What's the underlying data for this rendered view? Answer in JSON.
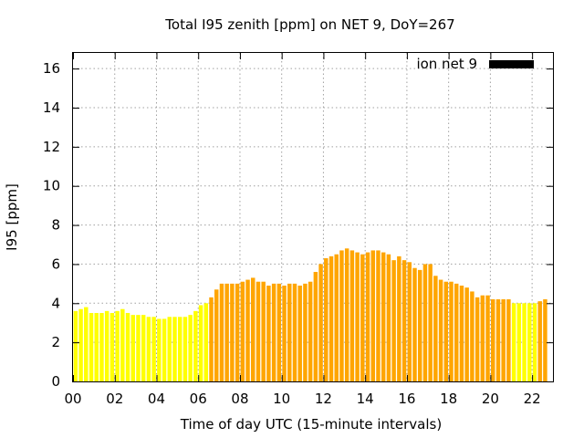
{
  "chart_data": {
    "type": "bar",
    "title": "Total I95 zenith [ppm] on NET 9, DoY=267",
    "xlabel": "Time of day UTC (15-minute intervals)",
    "ylabel": "I95 [ppm]",
    "xlim": [
      0,
      23
    ],
    "ylim": [
      0,
      16.8
    ],
    "grid": true,
    "legend": {
      "position": "top-right",
      "label": "ion net 9",
      "color": "#000000"
    },
    "x_ticks": [
      {
        "value": 0,
        "label": "00"
      },
      {
        "value": 2,
        "label": "02"
      },
      {
        "value": 4,
        "label": "04"
      },
      {
        "value": 6,
        "label": "06"
      },
      {
        "value": 8,
        "label": "08"
      },
      {
        "value": 10,
        "label": "10"
      },
      {
        "value": 12,
        "label": "12"
      },
      {
        "value": 14,
        "label": "14"
      },
      {
        "value": 16,
        "label": "16"
      },
      {
        "value": 18,
        "label": "18"
      },
      {
        "value": 20,
        "label": "20"
      },
      {
        "value": 22,
        "label": "22"
      }
    ],
    "y_ticks": [
      {
        "value": 0,
        "label": "0"
      },
      {
        "value": 2,
        "label": "2"
      },
      {
        "value": 4,
        "label": "4"
      },
      {
        "value": 6,
        "label": "6"
      },
      {
        "value": 8,
        "label": "8"
      },
      {
        "value": 10,
        "label": "10"
      },
      {
        "value": 12,
        "label": "12"
      },
      {
        "value": 14,
        "label": "14"
      },
      {
        "value": 16,
        "label": "16"
      }
    ],
    "interval_hours": 0.25,
    "colors": {
      "low": "#ffff00",
      "high": "#ffa500"
    },
    "values": [
      3.6,
      3.7,
      3.8,
      3.5,
      3.5,
      3.5,
      3.6,
      3.5,
      3.6,
      3.7,
      3.5,
      3.4,
      3.4,
      3.4,
      3.3,
      3.3,
      3.2,
      3.2,
      3.3,
      3.3,
      3.3,
      3.3,
      3.4,
      3.6,
      3.9,
      4.0,
      4.3,
      4.7,
      5.0,
      5.0,
      5.0,
      5.0,
      5.1,
      5.2,
      5.3,
      5.1,
      5.1,
      4.9,
      5.0,
      5.0,
      4.9,
      5.0,
      5.0,
      4.9,
      5.0,
      5.1,
      5.6,
      6.0,
      6.3,
      6.4,
      6.5,
      6.7,
      6.8,
      6.7,
      6.6,
      6.5,
      6.6,
      6.7,
      6.7,
      6.6,
      6.5,
      6.2,
      6.4,
      6.2,
      6.1,
      5.8,
      5.7,
      6.0,
      6.0,
      5.4,
      5.2,
      5.1,
      5.1,
      5.0,
      4.9,
      4.8,
      4.6,
      4.3,
      4.4,
      4.4,
      4.2,
      4.2,
      4.2,
      4.2,
      4.0,
      4.0,
      4.0,
      4.0,
      4.0,
      4.1,
      4.2
    ],
    "categories_per_bar": [
      "low",
      "low",
      "low",
      "low",
      "low",
      "low",
      "low",
      "low",
      "low",
      "low",
      "low",
      "low",
      "low",
      "low",
      "low",
      "low",
      "low",
      "low",
      "low",
      "low",
      "low",
      "low",
      "low",
      "low",
      "low",
      "low",
      "high",
      "high",
      "high",
      "high",
      "high",
      "high",
      "high",
      "high",
      "high",
      "high",
      "high",
      "high",
      "high",
      "high",
      "high",
      "high",
      "high",
      "high",
      "high",
      "high",
      "high",
      "high",
      "high",
      "high",
      "high",
      "high",
      "high",
      "high",
      "high",
      "high",
      "high",
      "high",
      "high",
      "high",
      "high",
      "high",
      "high",
      "high",
      "high",
      "high",
      "high",
      "high",
      "high",
      "high",
      "high",
      "high",
      "high",
      "high",
      "high",
      "high",
      "high",
      "high",
      "high",
      "high",
      "high",
      "high",
      "high",
      "high",
      "low",
      "low",
      "low",
      "low",
      "low",
      "high",
      "high"
    ]
  }
}
